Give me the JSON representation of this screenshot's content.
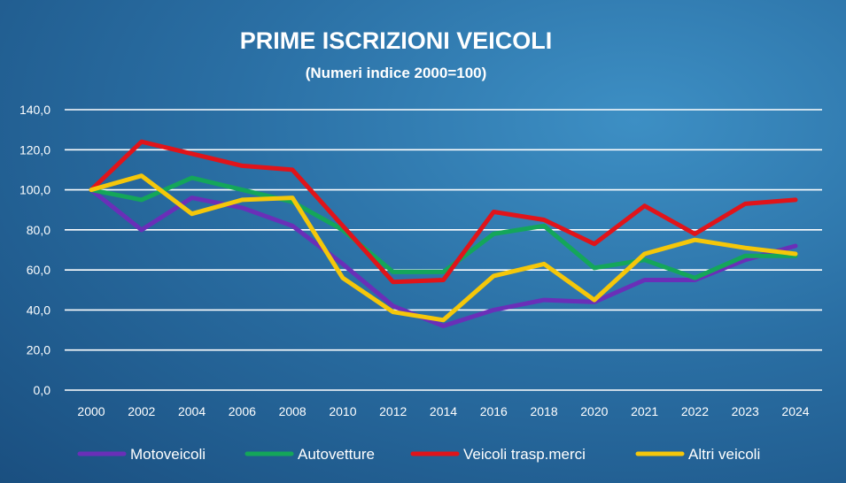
{
  "chart_data": {
    "type": "line",
    "title": "PRIME ISCRIZIONI VEICOLI",
    "subtitle": "(Numeri indice 2000=100)",
    "categories": [
      "2000",
      "2002",
      "2004",
      "2006",
      "2008",
      "2010",
      "2012",
      "2014",
      "2016",
      "2018",
      "2020",
      "2021",
      "2022",
      "2023",
      "2024"
    ],
    "y_ticks": [
      "0,0",
      "20,0",
      "40,0",
      "60,0",
      "80,0",
      "100,0",
      "120,0",
      "140,0"
    ],
    "ylim": [
      0,
      140
    ],
    "grid": true,
    "legend_position": "bottom",
    "series": [
      {
        "name": "Motoveicoli",
        "color": "#6a2fb8",
        "values": [
          100,
          80,
          96,
          91,
          82,
          63,
          42,
          32,
          40,
          45,
          44,
          55,
          55,
          65,
          72
        ]
      },
      {
        "name": "Autovetture",
        "color": "#14a65a",
        "values": [
          100,
          95,
          106,
          100,
          94,
          80,
          59,
          59,
          78,
          82,
          61,
          65,
          56,
          67,
          67
        ]
      },
      {
        "name": "Veicoli trasp.merci",
        "color": "#e0141a",
        "values": [
          100,
          124,
          118,
          112,
          110,
          82,
          54,
          55,
          89,
          85,
          73,
          92,
          78,
          93,
          95
        ]
      },
      {
        "name": "Altri veicoli",
        "color": "#f5c70a",
        "values": [
          100,
          107,
          88,
          95,
          96,
          56,
          39,
          35,
          57,
          63,
          45,
          68,
          75,
          71,
          68
        ]
      }
    ]
  }
}
